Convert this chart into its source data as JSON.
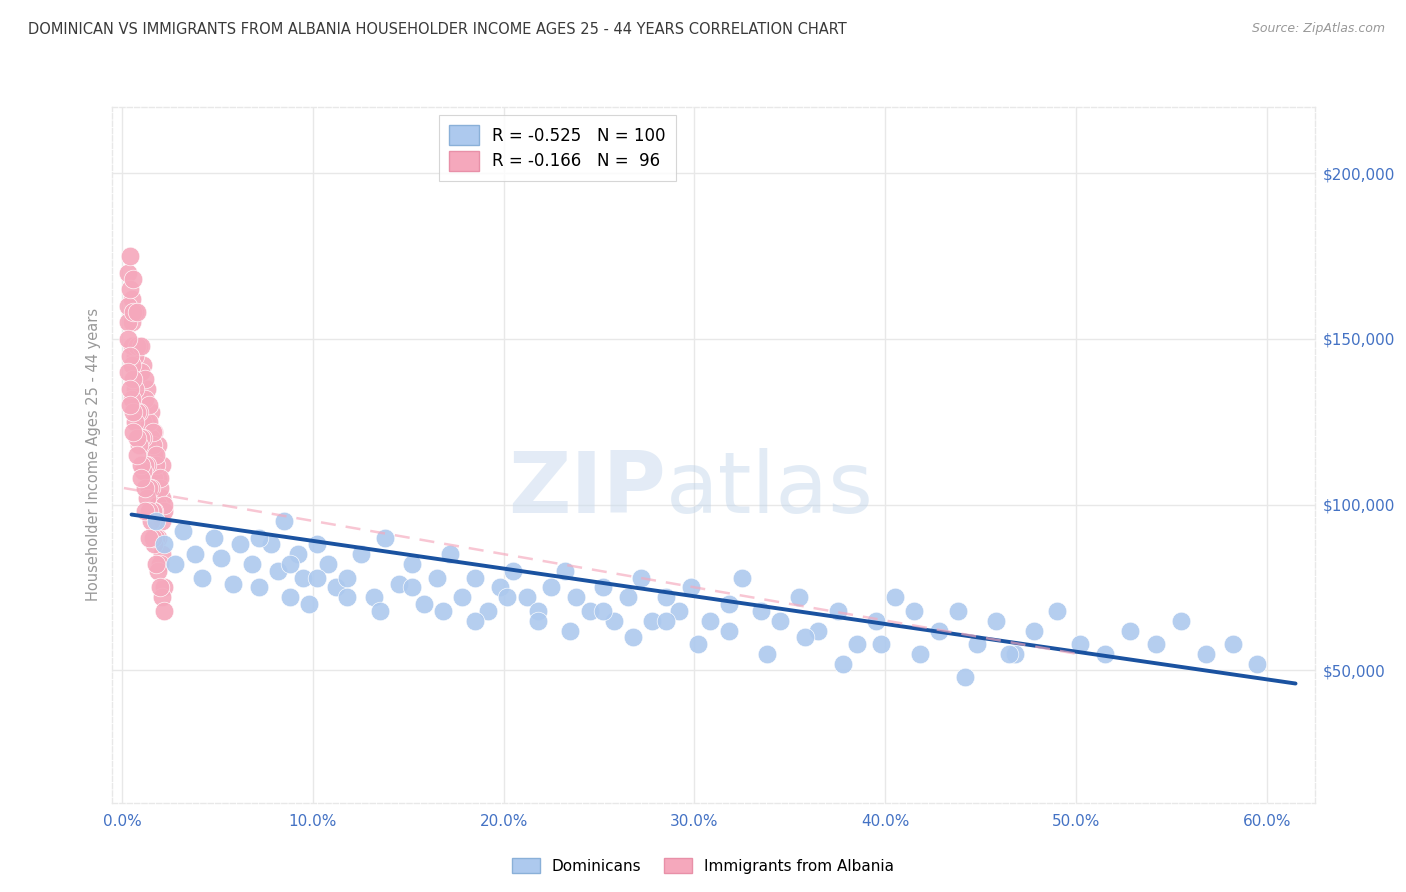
{
  "title": "DOMINICAN VS IMMIGRANTS FROM ALBANIA HOUSEHOLDER INCOME AGES 25 - 44 YEARS CORRELATION CHART",
  "source": "Source: ZipAtlas.com",
  "ylabel": "Householder Income Ages 25 - 44 years",
  "xlabel_ticks": [
    "0.0%",
    "10.0%",
    "20.0%",
    "30.0%",
    "40.0%",
    "50.0%",
    "60.0%"
  ],
  "ytick_labels": [
    "$50,000",
    "$100,000",
    "$150,000",
    "$200,000"
  ],
  "ytick_values": [
    50000,
    100000,
    150000,
    200000
  ],
  "xlim": [
    -0.005,
    0.625
  ],
  "ylim": [
    10000,
    220000
  ],
  "dominican_R": "-0.525",
  "dominican_N": "100",
  "albania_R": "-0.166",
  "albania_N": "96",
  "blue_color": "#adc9ee",
  "blue_line_color": "#1a52a0",
  "pink_color": "#f5a8bc",
  "watermark_color": "#d4e3f5",
  "background_color": "#ffffff",
  "grid_color": "#e8e8e8",
  "title_color": "#3a3a3a",
  "axis_label_color": "#4472c4",
  "ylabel_color": "#999999",
  "source_color": "#999999",
  "dominican_x": [
    0.018,
    0.022,
    0.028,
    0.032,
    0.038,
    0.042,
    0.048,
    0.052,
    0.058,
    0.062,
    0.068,
    0.072,
    0.078,
    0.082,
    0.085,
    0.088,
    0.092,
    0.095,
    0.098,
    0.102,
    0.108,
    0.112,
    0.118,
    0.125,
    0.132,
    0.138,
    0.145,
    0.152,
    0.158,
    0.165,
    0.172,
    0.178,
    0.185,
    0.192,
    0.198,
    0.205,
    0.212,
    0.218,
    0.225,
    0.232,
    0.238,
    0.245,
    0.252,
    0.258,
    0.265,
    0.272,
    0.278,
    0.285,
    0.292,
    0.298,
    0.308,
    0.318,
    0.325,
    0.335,
    0.345,
    0.355,
    0.365,
    0.375,
    0.385,
    0.395,
    0.405,
    0.415,
    0.428,
    0.438,
    0.448,
    0.458,
    0.468,
    0.478,
    0.49,
    0.502,
    0.515,
    0.528,
    0.542,
    0.555,
    0.568,
    0.582,
    0.595,
    0.072,
    0.088,
    0.102,
    0.118,
    0.135,
    0.152,
    0.168,
    0.185,
    0.202,
    0.218,
    0.235,
    0.252,
    0.268,
    0.285,
    0.302,
    0.318,
    0.338,
    0.358,
    0.378,
    0.398,
    0.418,
    0.442,
    0.465
  ],
  "dominican_y": [
    95000,
    88000,
    82000,
    92000,
    85000,
    78000,
    90000,
    84000,
    76000,
    88000,
    82000,
    75000,
    88000,
    80000,
    95000,
    72000,
    85000,
    78000,
    70000,
    88000,
    82000,
    75000,
    78000,
    85000,
    72000,
    90000,
    76000,
    82000,
    70000,
    78000,
    85000,
    72000,
    78000,
    68000,
    75000,
    80000,
    72000,
    68000,
    75000,
    80000,
    72000,
    68000,
    75000,
    65000,
    72000,
    78000,
    65000,
    72000,
    68000,
    75000,
    65000,
    70000,
    78000,
    68000,
    65000,
    72000,
    62000,
    68000,
    58000,
    65000,
    72000,
    68000,
    62000,
    68000,
    58000,
    65000,
    55000,
    62000,
    68000,
    58000,
    55000,
    62000,
    58000,
    65000,
    55000,
    58000,
    52000,
    90000,
    82000,
    78000,
    72000,
    68000,
    75000,
    68000,
    65000,
    72000,
    65000,
    62000,
    68000,
    60000,
    65000,
    58000,
    62000,
    55000,
    60000,
    52000,
    58000,
    55000,
    48000,
    55000
  ],
  "albania_x": [
    0.003,
    0.005,
    0.007,
    0.009,
    0.011,
    0.013,
    0.015,
    0.017,
    0.019,
    0.021,
    0.003,
    0.005,
    0.007,
    0.009,
    0.011,
    0.013,
    0.015,
    0.017,
    0.019,
    0.021,
    0.003,
    0.005,
    0.007,
    0.009,
    0.011,
    0.013,
    0.015,
    0.017,
    0.019,
    0.021,
    0.004,
    0.006,
    0.008,
    0.01,
    0.012,
    0.014,
    0.016,
    0.018,
    0.02,
    0.022,
    0.004,
    0.006,
    0.008,
    0.01,
    0.012,
    0.014,
    0.016,
    0.018,
    0.02,
    0.022,
    0.003,
    0.005,
    0.007,
    0.009,
    0.011,
    0.013,
    0.015,
    0.017,
    0.019,
    0.021,
    0.004,
    0.006,
    0.008,
    0.01,
    0.012,
    0.014,
    0.016,
    0.018,
    0.02,
    0.022,
    0.003,
    0.005,
    0.007,
    0.009,
    0.011,
    0.013,
    0.015,
    0.017,
    0.019,
    0.021,
    0.004,
    0.006,
    0.008,
    0.01,
    0.012,
    0.014,
    0.016,
    0.018,
    0.02,
    0.022,
    0.004,
    0.006,
    0.008,
    0.01,
    0.012,
    0.014
  ],
  "albania_y": [
    170000,
    162000,
    158000,
    148000,
    142000,
    135000,
    128000,
    122000,
    118000,
    112000,
    160000,
    155000,
    145000,
    140000,
    132000,
    125000,
    120000,
    115000,
    108000,
    102000,
    155000,
    148000,
    138000,
    132000,
    125000,
    118000,
    112000,
    108000,
    100000,
    95000,
    165000,
    158000,
    148000,
    140000,
    132000,
    125000,
    118000,
    112000,
    105000,
    98000,
    175000,
    168000,
    158000,
    148000,
    138000,
    130000,
    122000,
    115000,
    108000,
    100000,
    150000,
    142000,
    135000,
    128000,
    120000,
    112000,
    105000,
    98000,
    90000,
    85000,
    145000,
    138000,
    128000,
    120000,
    112000,
    105000,
    98000,
    90000,
    82000,
    75000,
    140000,
    132000,
    125000,
    118000,
    110000,
    102000,
    95000,
    88000,
    80000,
    72000,
    135000,
    128000,
    120000,
    112000,
    105000,
    98000,
    90000,
    82000,
    75000,
    68000,
    130000,
    122000,
    115000,
    108000,
    98000,
    90000
  ],
  "dom_line_x0": 0.005,
  "dom_line_x1": 0.615,
  "dom_line_y0": 97000,
  "dom_line_y1": 46000,
  "alb_line_x0": 0.001,
  "alb_line_x1": 0.5,
  "alb_line_y0": 105000,
  "alb_line_y1": 55000
}
